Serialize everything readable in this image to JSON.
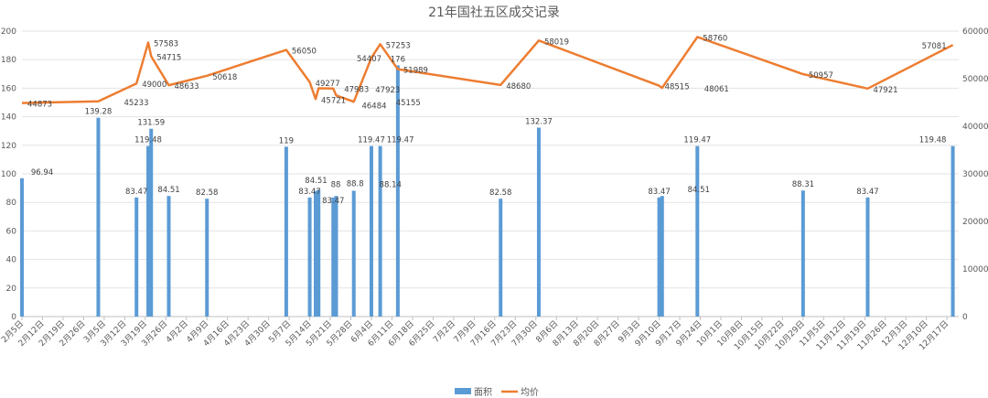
{
  "chart_data": {
    "type": "bar+line",
    "title": "21年国社五区成交记录",
    "xlabel": "",
    "ylabel": "",
    "y2label": "",
    "ylim": [
      0,
      200
    ],
    "y2lim": [
      0,
      60000
    ],
    "yticks": [
      0,
      20,
      40,
      60,
      80,
      100,
      120,
      140,
      160,
      180,
      200
    ],
    "y2ticks": [
      0,
      10000,
      20000,
      30000,
      40000,
      50000,
      60000
    ],
    "grid": true,
    "legend": "bottom",
    "xticks": [
      "2月5日",
      "2月12日",
      "2月19日",
      "2月26日",
      "3月5日",
      "3月12日",
      "3月19日",
      "3月26日",
      "4月2日",
      "4月9日",
      "4月16日",
      "4月23日",
      "4月30日",
      "5月7日",
      "5月14日",
      "5月21日",
      "5月28日",
      "6月4日",
      "6月11日",
      "6月18日",
      "6月25日",
      "7月2日",
      "7月9日",
      "7月16日",
      "7月23日",
      "7月30日",
      "8月6日",
      "8月13日",
      "8月20日",
      "8月27日",
      "9月3日",
      "9月10日",
      "9月17日",
      "9月24日",
      "10月1日",
      "10月8日",
      "10月15日",
      "10月22日",
      "10月29日",
      "11月5日",
      "11月12日",
      "11月19日",
      "11月26日",
      "12月3日",
      "12月10日",
      "12月17日"
    ],
    "x": [
      "2月5日",
      "3月3日",
      "3月16日",
      "3月20日",
      "3月21日",
      "3月27日",
      "4月9日",
      "5月6日",
      "5月14日",
      "5月16日",
      "5月17日",
      "5月22日",
      "5月23日",
      "5月29日",
      "6月4日",
      "6月7日",
      "6月13日",
      "7月18日",
      "7月31日",
      "9月10日",
      "9月11日",
      "9月23日",
      "10月29日",
      "11月20日",
      "12月19日"
    ],
    "series": [
      {
        "name": "面积",
        "type": "bar",
        "axis": "left",
        "color": "#5b9bd5",
        "values": [
          96.94,
          139.28,
          83.47,
          119.48,
          131.59,
          84.51,
          82.58,
          119,
          83.47,
          88,
          88.8,
          83.47,
          84.51,
          88.14,
          119.47,
          119.47,
          176,
          82.58,
          132.37,
          83.47,
          84.51,
          119.47,
          88.31,
          83.47,
          119.48
        ]
      },
      {
        "name": "均价",
        "type": "line",
        "axis": "right",
        "color": "#ed7d31",
        "values": [
          44873,
          45233,
          49000,
          57583,
          54715,
          48633,
          50618,
          56050,
          49277,
          45721,
          47983,
          47923,
          46484,
          45155,
          54407,
          57253,
          51989,
          48680,
          58019,
          48515,
          48061,
          58760,
          50957,
          47921,
          57081
        ]
      }
    ]
  }
}
